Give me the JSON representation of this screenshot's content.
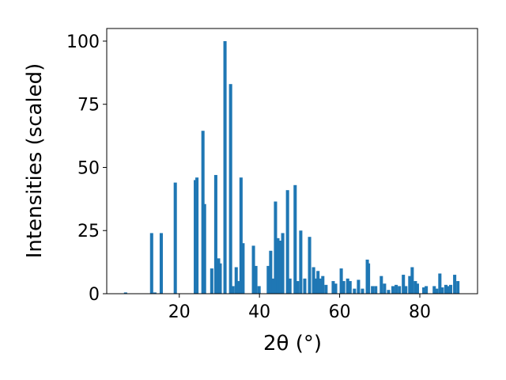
{
  "chart_data": {
    "type": "bar",
    "xlabel": "2θ (°)",
    "ylabel": "Intensities (scaled)",
    "color": "#1f77b4",
    "x": [
      6.6,
      13.1,
      13.9,
      15.5,
      19.0,
      24.0,
      24.4,
      25.9,
      26.3,
      28.1,
      29.1,
      29.8,
      30.2,
      31.4,
      32.8,
      33.4,
      34.2,
      34.8,
      35.4,
      35.9,
      38.5,
      39.1,
      39.9,
      42.2,
      42.8,
      43.4,
      44.0,
      44.6,
      45.2,
      45.8,
      47.0,
      47.6,
      48.9,
      49.5,
      50.3,
      51.3,
      52.5,
      53.5,
      54.1,
      54.6,
      55.2,
      55.8,
      56.6,
      58.4,
      59.0,
      60.4,
      61.0,
      62.0,
      62.6,
      63.7,
      64.7,
      65.7,
      66.9,
      67.2,
      68.2,
      69.0,
      70.4,
      71.2,
      72.2,
      73.3,
      74.1,
      74.9,
      75.9,
      76.5,
      77.5,
      78.1,
      78.9,
      79.4,
      81.0,
      81.6,
      83.6,
      84.2,
      85.0,
      85.6,
      86.5,
      87.1,
      87.7,
      88.7,
      89.5
    ],
    "values": [
      0.5,
      24,
      0.5,
      24,
      44,
      45,
      46,
      64.5,
      35.5,
      10,
      47,
      14,
      12,
      100,
      83,
      3,
      10.5,
      5,
      46,
      20,
      19,
      11,
      3,
      11,
      17,
      6,
      36.5,
      22,
      21,
      24,
      41,
      6,
      43,
      5,
      25,
      6,
      22.5,
      10.5,
      6,
      9,
      6,
      7,
      3.5,
      5,
      4,
      10,
      5,
      6,
      5,
      2,
      5.5,
      2,
      13.5,
      12,
      3,
      3,
      7,
      4,
      1.5,
      3,
      3.5,
      3,
      7.5,
      3,
      7,
      10.5,
      5,
      4,
      2.5,
      3,
      3,
      2,
      8,
      2.5,
      3.5,
      3,
      3.5,
      7.5,
      5
    ],
    "xlim": [
      1.9,
      94.4
    ],
    "ylim": [
      0,
      105
    ],
    "xticks": [
      20,
      40,
      60,
      80
    ],
    "yticks": [
      0,
      25,
      50,
      75,
      100
    ]
  }
}
